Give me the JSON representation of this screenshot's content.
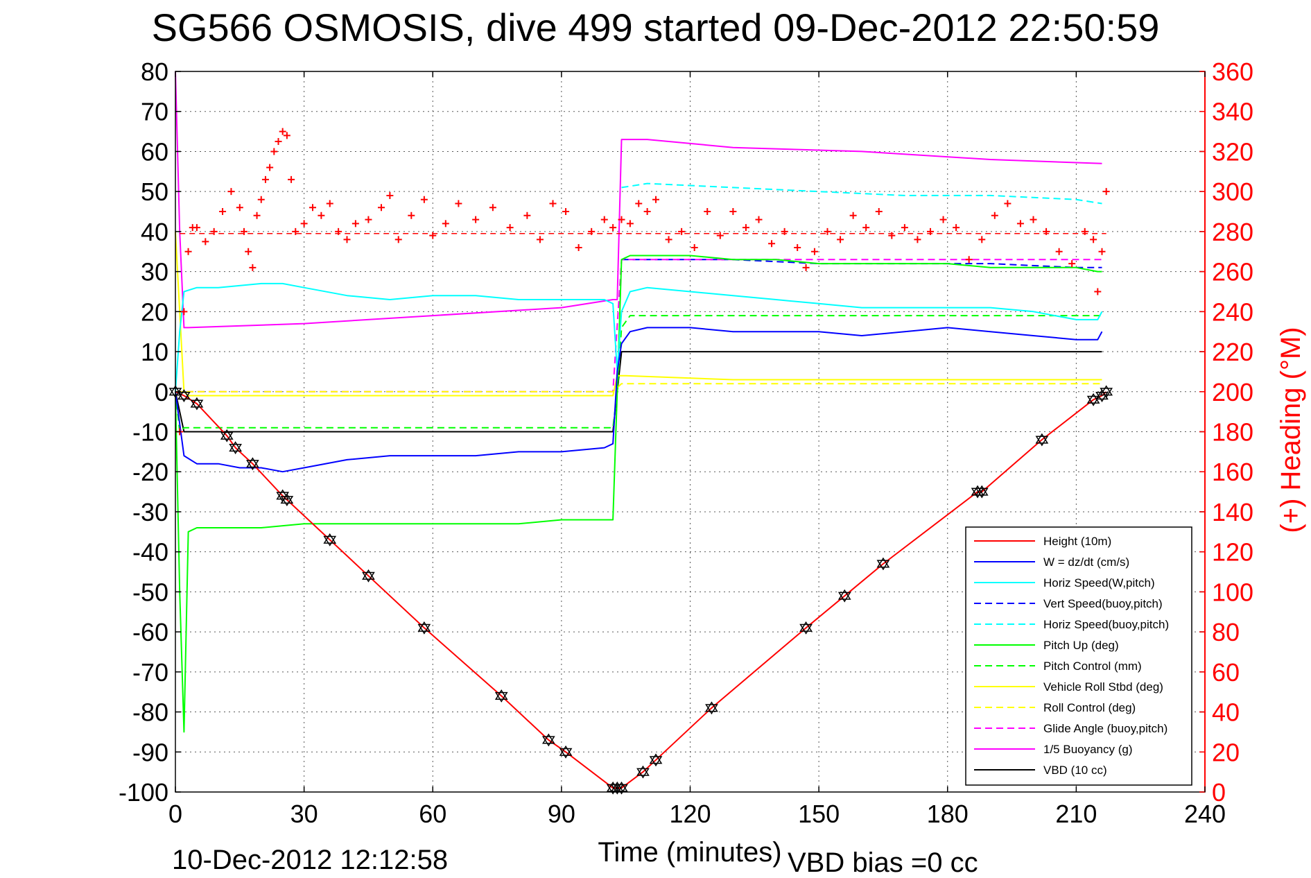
{
  "title": "SG566 OSMOSIS, dive 499 started 09-Dec-2012 22:50:59",
  "footer_date": "10-Dec-2012 12:12:58",
  "footer_bias": "VBD bias =0 cc",
  "chart_data": {
    "type": "line",
    "title": "SG566 OSMOSIS, dive 499 started 09-Dec-2012 22:50:59",
    "xlabel": "Time (minutes)",
    "ylabel": "",
    "y2label": "(+) Heading (°M)",
    "xlim": [
      0,
      240
    ],
    "ylim": [
      -100,
      80
    ],
    "y2lim": [
      0,
      360
    ],
    "xticks": [
      0,
      30,
      60,
      90,
      120,
      150,
      180,
      210,
      240
    ],
    "yticks": [
      80,
      70,
      60,
      50,
      40,
      30,
      20,
      10,
      0,
      -10,
      -20,
      -30,
      -40,
      -50,
      -60,
      -70,
      -80,
      -90,
      -100
    ],
    "y2ticks": [
      360,
      340,
      320,
      300,
      280,
      260,
      240,
      220,
      200,
      180,
      160,
      140,
      120,
      100,
      80,
      60,
      40,
      20,
      0
    ],
    "grid": true,
    "legend_position": "bottom-right",
    "colors": {
      "height": "#ff0000",
      "w": "#0000ff",
      "horiz_speed": "#00ffff",
      "pitch": "#00ff00",
      "roll": "#ffff00",
      "glide": "#ff00ff",
      "vbd": "#000000",
      "heading": "#ff0000"
    },
    "series": [
      {
        "name": "Height (10m)",
        "color": "#ff0000",
        "style": "solid",
        "x": [
          0,
          2,
          5,
          12,
          14,
          18,
          25,
          26,
          36,
          45,
          58,
          76,
          87,
          91,
          102,
          103,
          104,
          109,
          112,
          125,
          147,
          156,
          165,
          187,
          188,
          202,
          214,
          216,
          217
        ],
        "y": [
          0,
          -1,
          -3,
          -11,
          -14,
          -18,
          -26,
          -27,
          -37,
          -46,
          -59,
          -76,
          -87,
          -90,
          -99,
          -99,
          -99,
          -95,
          -92,
          -79,
          -59,
          -51,
          -43,
          -25,
          -25,
          -12,
          -2,
          -1,
          0
        ]
      },
      {
        "name": "W = dz/dt (cm/s)",
        "color": "#0000ff",
        "style": "solid",
        "x": [
          0,
          1,
          2,
          5,
          10,
          15,
          20,
          25,
          30,
          40,
          50,
          60,
          70,
          80,
          90,
          100,
          102,
          103,
          104,
          106,
          110,
          120,
          130,
          140,
          150,
          160,
          170,
          180,
          190,
          200,
          210,
          215,
          216
        ],
        "y": [
          0,
          -8,
          -16,
          -18,
          -18,
          -19,
          -19,
          -20,
          -19,
          -17,
          -16,
          -16,
          -16,
          -15,
          -15,
          -14,
          -13,
          5,
          12,
          15,
          16,
          16,
          15,
          15,
          15,
          14,
          15,
          16,
          15,
          14,
          13,
          13,
          15
        ]
      },
      {
        "name": "Horiz Speed(W,pitch)",
        "color": "#00ffff",
        "style": "solid",
        "x": [
          0,
          1,
          2,
          5,
          10,
          20,
          25,
          30,
          40,
          50,
          60,
          70,
          80,
          90,
          100,
          102,
          103,
          104,
          106,
          110,
          120,
          130,
          140,
          150,
          160,
          170,
          180,
          190,
          200,
          210,
          215,
          216
        ],
        "y": [
          0,
          15,
          25,
          26,
          26,
          27,
          27,
          26,
          24,
          23,
          24,
          24,
          23,
          23,
          23,
          22,
          5,
          20,
          25,
          26,
          25,
          24,
          23,
          22,
          21,
          21,
          21,
          21,
          20,
          18,
          18,
          20
        ]
      },
      {
        "name": "Vert Speed(buoy,pitch)",
        "color": "#0000ff",
        "style": "dashed",
        "x": [
          104,
          110,
          130,
          150,
          170,
          190,
          210,
          216
        ],
        "y": [
          33,
          33,
          33,
          32,
          32,
          32,
          31,
          31
        ]
      },
      {
        "name": "Horiz Speed(buoy,pitch)",
        "color": "#00ffff",
        "style": "dashed",
        "x": [
          104,
          110,
          130,
          150,
          170,
          190,
          210,
          216
        ],
        "y": [
          51,
          52,
          51,
          50,
          49,
          49,
          48,
          47
        ]
      },
      {
        "name": "Pitch Up (deg)",
        "color": "#00ff00",
        "style": "solid",
        "x": [
          0,
          1,
          2,
          3,
          5,
          10,
          20,
          30,
          40,
          50,
          60,
          70,
          80,
          90,
          100,
          102,
          103,
          104,
          106,
          110,
          120,
          130,
          140,
          150,
          160,
          170,
          180,
          190,
          200,
          210,
          215,
          216
        ],
        "y": [
          0,
          -50,
          -85,
          -35,
          -34,
          -34,
          -34,
          -33,
          -33,
          -33,
          -33,
          -33,
          -33,
          -32,
          -32,
          -32,
          0,
          33,
          34,
          34,
          34,
          33,
          33,
          32,
          32,
          32,
          32,
          31,
          31,
          31,
          30,
          30
        ]
      },
      {
        "name": "Pitch Control (mm)",
        "color": "#00ff00",
        "style": "dashed",
        "x": [
          0,
          1,
          2,
          20,
          50,
          100,
          102,
          103,
          104,
          106,
          130,
          160,
          190,
          216
        ],
        "y": [
          0,
          -10,
          -9,
          -9,
          -9,
          -9,
          -9,
          0,
          16,
          19,
          19,
          19,
          19,
          19
        ]
      },
      {
        "name": "Vehicle Roll Stbd (deg)",
        "color": "#ffff00",
        "style": "solid",
        "x": [
          0,
          2,
          3,
          5,
          20,
          50,
          80,
          100,
          102,
          103,
          105,
          130,
          160,
          190,
          214,
          216
        ],
        "y": [
          40,
          0,
          -1,
          -1,
          -1,
          -1,
          -1,
          -1,
          -1,
          4,
          4,
          3,
          3,
          3,
          3,
          3
        ]
      },
      {
        "name": "Roll Control (deg)",
        "color": "#ffff00",
        "style": "dashed",
        "x": [
          0,
          3,
          50,
          100,
          102,
          104,
          130,
          160,
          190,
          216
        ],
        "y": [
          0,
          0,
          0,
          0,
          0,
          2,
          2,
          2,
          2,
          2
        ]
      },
      {
        "name": "Glide Angle (buoy,pitch)",
        "color": "#ff00ff",
        "style": "dashed",
        "x": [
          0,
          2,
          50,
          100,
          102,
          104,
          130,
          160,
          190,
          216
        ],
        "y": [
          0,
          0,
          0,
          0,
          0,
          33,
          33,
          33,
          33,
          33
        ]
      },
      {
        "name": "1/5 Buoyancy (g)",
        "color": "#ff00ff",
        "style": "solid",
        "x": [
          0,
          1,
          2,
          3,
          30,
          60,
          90,
          102,
          103,
          104,
          110,
          130,
          160,
          190,
          216
        ],
        "y": [
          80,
          40,
          16,
          16,
          17,
          19,
          21,
          23,
          23,
          63,
          63,
          61,
          60,
          58,
          57
        ]
      },
      {
        "name": "VBD (10 cc)",
        "color": "#000000",
        "style": "solid",
        "x": [
          0,
          1,
          2,
          5,
          50,
          100,
          102,
          103,
          104,
          106,
          150,
          216
        ],
        "y": [
          0,
          -5,
          -10,
          -10,
          -10,
          -10,
          -10,
          0,
          10,
          10,
          10,
          10
        ]
      }
    ],
    "heading_series": {
      "name": "(+) Heading",
      "color": "#ff0000",
      "marker": "+",
      "reference": 279,
      "x": [
        1,
        2,
        3,
        4,
        5,
        7,
        9,
        11,
        13,
        15,
        16,
        17,
        18,
        19,
        20,
        21,
        22,
        23,
        24,
        25,
        26,
        27,
        28,
        30,
        32,
        34,
        36,
        38,
        40,
        42,
        45,
        48,
        50,
        52,
        55,
        58,
        60,
        63,
        66,
        70,
        74,
        78,
        82,
        85,
        88,
        91,
        94,
        97,
        100,
        102,
        104,
        106,
        108,
        110,
        112,
        115,
        118,
        121,
        124,
        127,
        130,
        133,
        136,
        139,
        142,
        145,
        147,
        149,
        152,
        155,
        158,
        161,
        164,
        167,
        170,
        173,
        176,
        179,
        182,
        185,
        188,
        191,
        194,
        197,
        200,
        203,
        206,
        209,
        212,
        214,
        215,
        216,
        217
      ],
      "y": [
        180,
        240,
        270,
        282,
        282,
        275,
        280,
        290,
        300,
        292,
        280,
        270,
        262,
        288,
        296,
        306,
        312,
        320,
        325,
        330,
        328,
        306,
        280,
        284,
        292,
        288,
        294,
        280,
        276,
        284,
        286,
        292,
        298,
        276,
        288,
        296,
        278,
        284,
        294,
        286,
        292,
        282,
        288,
        276,
        294,
        290,
        272,
        280,
        286,
        282,
        286,
        284,
        294,
        290,
        296,
        276,
        280,
        272,
        290,
        278,
        290,
        282,
        286,
        274,
        280,
        272,
        262,
        270,
        280,
        276,
        288,
        282,
        290,
        278,
        282,
        276,
        280,
        286,
        282,
        266,
        276,
        288,
        294,
        284,
        286,
        280,
        270,
        264,
        280,
        276,
        250,
        270,
        300
      ]
    },
    "markers": {
      "x": [
        0,
        2,
        5,
        12,
        14,
        18,
        25,
        26,
        36,
        45,
        58,
        76,
        87,
        91,
        102,
        103,
        104,
        109,
        112,
        125,
        147,
        156,
        165,
        187,
        188,
        202,
        214,
        216,
        217
      ],
      "y": [
        0,
        -1,
        -3,
        -11,
        -14,
        -18,
        -26,
        -27,
        -37,
        -46,
        -59,
        -76,
        -87,
        -90,
        -99,
        -99,
        -99,
        -95,
        -92,
        -79,
        -59,
        -51,
        -43,
        -25,
        -25,
        -12,
        -2,
        -1,
        0
      ]
    },
    "legend": [
      "Height (10m)",
      "W = dz/dt (cm/s)",
      "Horiz Speed(W,pitch)",
      "Vert Speed(buoy,pitch)",
      "Horiz Speed(buoy,pitch)",
      "Pitch Up (deg)",
      "Pitch Control (mm)",
      "Vehicle Roll Stbd (deg)",
      "Roll Control (deg)",
      "Glide Angle (buoy,pitch)",
      "1/5 Buoyancy (g)",
      "VBD (10 cc)"
    ]
  }
}
